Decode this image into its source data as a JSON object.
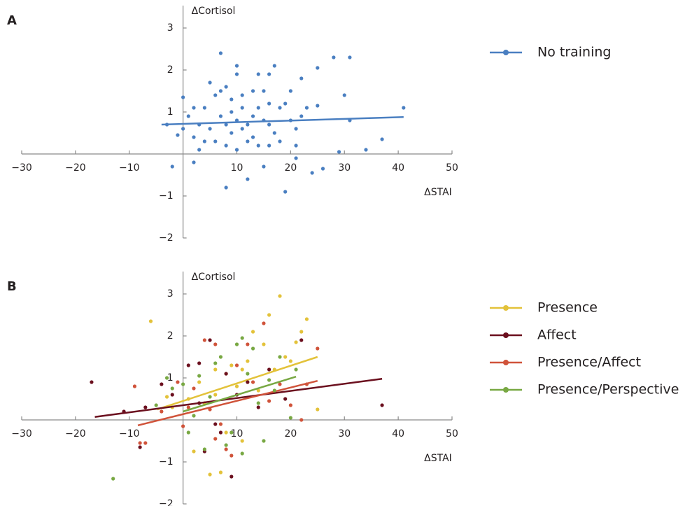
{
  "chart_data": [
    {
      "type": "scatter",
      "panel": "A",
      "x_label": "ΔSTAI",
      "y_label": "ΔCortisol",
      "xlim": [
        -30,
        50
      ],
      "ylim": [
        -2,
        3.5
      ],
      "xticks": [
        {
          "value": -30,
          "label": "−30"
        },
        {
          "value": -20,
          "label": "−20"
        },
        {
          "value": -10,
          "label": "−10"
        },
        10,
        20,
        30,
        40,
        50
      ],
      "yticks": [
        {
          "value": -2,
          "label": "−2"
        },
        {
          "value": -1,
          "label": "−1"
        },
        1,
        2,
        3
      ],
      "series": [
        {
          "name": "No training",
          "color": "#4a7fc1",
          "x": [
            -3,
            -2,
            -1,
            0,
            0,
            1,
            2,
            2,
            2,
            3,
            3,
            4,
            4,
            5,
            5,
            6,
            6,
            7,
            7,
            7,
            8,
            8,
            8,
            8,
            9,
            9,
            9,
            10,
            10,
            10,
            10,
            11,
            11,
            11,
            12,
            12,
            12,
            13,
            13,
            13,
            14,
            14,
            14,
            15,
            15,
            15,
            16,
            16,
            16,
            16,
            17,
            17,
            18,
            18,
            19,
            19,
            20,
            20,
            21,
            21,
            21,
            22,
            22,
            23,
            24,
            25,
            25,
            26,
            28,
            29,
            30,
            31,
            31,
            34,
            37,
            41
          ],
          "values": [
            0.7,
            -0.3,
            0.45,
            0.6,
            1.35,
            0.9,
            1.1,
            0.4,
            -0.2,
            0.1,
            0.7,
            1.1,
            0.3,
            0.6,
            1.7,
            1.4,
            0.3,
            0.9,
            2.4,
            1.5,
            1.6,
            0.7,
            -0.8,
            0.2,
            1.3,
            1,
            0.5,
            2.1,
            1.9,
            0.8,
            0.1,
            1.4,
            1.1,
            0.6,
            -0.6,
            0.3,
            0.7,
            1.5,
            0.9,
            0.4,
            1.9,
            1.1,
            0.2,
            1.5,
            0.8,
            -0.3,
            1.9,
            1.2,
            0.7,
            0.2,
            2.1,
            0.5,
            1.1,
            0.3,
            1.2,
            -0.9,
            1.5,
            0.8,
            0.6,
            0.2,
            -0.1,
            1.8,
            0.9,
            1.1,
            -0.45,
            2.05,
            1.15,
            -0.35,
            2.3,
            0.05,
            1.4,
            2.3,
            0.8,
            0.1,
            0.35,
            1.1
          ],
          "fit": {
            "x": [
              -4,
              41
            ],
            "values": [
              0.7,
              0.88
            ]
          }
        }
      ]
    },
    {
      "type": "scatter",
      "panel": "B",
      "x_label": "ΔSTAI",
      "y_label": "ΔCortisol",
      "xlim": [
        -30,
        50
      ],
      "ylim": [
        -2,
        3.5
      ],
      "xticks": [
        {
          "value": -30,
          "label": "−30"
        },
        {
          "value": -20,
          "label": "−20"
        },
        {
          "value": -10,
          "label": "−10"
        },
        10,
        20,
        30,
        40,
        50
      ],
      "yticks": [
        {
          "value": -2,
          "label": "−2"
        },
        {
          "value": -1,
          "label": "−1"
        },
        1,
        2,
        3
      ],
      "series": [
        {
          "name": "Presence",
          "color": "#e3c23a",
          "x": [
            -6,
            -3,
            -2,
            1,
            2,
            3,
            4,
            5,
            6,
            7,
            8,
            9,
            10,
            11,
            12,
            13,
            14,
            15,
            16,
            17,
            18,
            19,
            20,
            21,
            22,
            23,
            25,
            8,
            6,
            11
          ],
          "values": [
            2.35,
            0.55,
            0.3,
            0.5,
            -0.75,
            0.9,
            0.4,
            -1.3,
            0.6,
            -1.25,
            1.1,
            1.3,
            0.8,
            1.2,
            1.4,
            2.1,
            0.7,
            1.8,
            2.5,
            1.2,
            2.95,
            1.5,
            1.4,
            1.85,
            2.1,
            2.4,
            0.25,
            -0.3,
            1.2,
            -0.5
          ],
          "fit": {
            "x": [
              -4.8,
              25
            ],
            "values": [
              0.25,
              1.5
            ]
          }
        },
        {
          "name": "Affect",
          "color": "#6b0f1e",
          "x": [
            -17,
            -11,
            -8,
            -7,
            -4,
            -2,
            1,
            3,
            3,
            5,
            6,
            7,
            8,
            9,
            10,
            12,
            14,
            16,
            19,
            22,
            37,
            4
          ],
          "values": [
            0.9,
            0.2,
            -0.65,
            0.3,
            0.85,
            0.6,
            1.3,
            1.35,
            0.4,
            1.9,
            -0.1,
            -0.3,
            1.1,
            -1.35,
            0.6,
            0.9,
            0.3,
            1.2,
            0.5,
            1.9,
            0.35,
            -0.75
          ],
          "fit": {
            "x": [
              -16.4,
              37
            ],
            "values": [
              0.07,
              0.98
            ]
          }
        },
        {
          "name": "Presence/Affect",
          "color": "#d0533a",
          "x": [
            -9,
            -8,
            -7,
            -4,
            -1,
            0,
            1,
            2,
            4,
            5,
            6,
            6,
            7,
            8,
            9,
            10,
            12,
            13,
            15,
            16,
            18,
            20,
            22,
            25,
            23
          ],
          "values": [
            0.8,
            -0.55,
            -0.55,
            0.2,
            0.9,
            -0.15,
            0.3,
            0.75,
            1.9,
            0.25,
            1.8,
            -0.45,
            -0.1,
            -0.7,
            -0.85,
            1.3,
            1.8,
            0.9,
            2.3,
            0.45,
            0.85,
            0.35,
            0,
            1.7,
            0.85
          ],
          "fit": {
            "x": [
              -8.4,
              25
            ],
            "values": [
              -0.13,
              0.93
            ]
          }
        },
        {
          "name": "Presence/Perspective",
          "color": "#78a843",
          "x": [
            -13,
            -5,
            -3,
            -2,
            0,
            1,
            2,
            3,
            4,
            5,
            6,
            7,
            8,
            9,
            10,
            11,
            12,
            13,
            14,
            15,
            16,
            17,
            18,
            20,
            21,
            11
          ],
          "values": [
            -1.4,
            0.35,
            1,
            0.75,
            0.85,
            -0.3,
            0.1,
            1.05,
            -0.7,
            0.55,
            1.35,
            1.5,
            -0.6,
            -0.3,
            1.8,
            1.95,
            1.1,
            1.7,
            0.4,
            -0.5,
            0.95,
            0.7,
            1.5,
            0.05,
            1.2,
            -0.8
          ],
          "fit": {
            "x": [
              0,
              21
            ],
            "values": [
              0.2,
              1.03
            ]
          }
        }
      ]
    }
  ]
}
